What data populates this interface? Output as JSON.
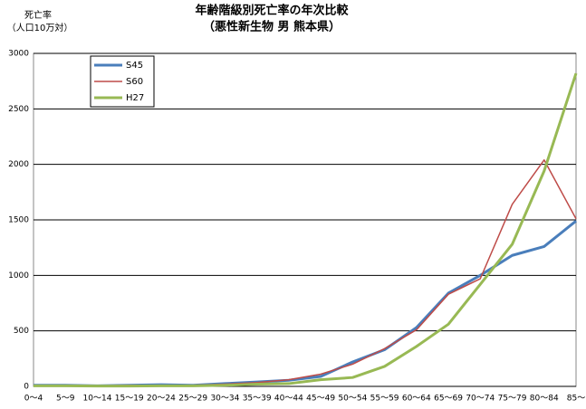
{
  "chart_data": {
    "type": "line",
    "title": "年齢階級別死亡率の年次比較",
    "subtitle": "（悪性新生物 男 熊本県）",
    "y_label": "死亡率",
    "y_label_sub": "（人口10万対）",
    "categories": [
      "0～4",
      "5～9",
      "10～14",
      "15～19",
      "20～24",
      "25～29",
      "30～34",
      "35～39",
      "40～44",
      "45～49",
      "50～54",
      "55～59",
      "60～64",
      "65～69",
      "70～74",
      "75～79",
      "80～84",
      "85～"
    ],
    "series": [
      {
        "name": "S45",
        "color": "#4a7ebb",
        "values": [
          10,
          10,
          5,
          10,
          15,
          10,
          25,
          40,
          55,
          90,
          220,
          330,
          530,
          840,
          1000,
          1180,
          1260,
          1490
        ]
      },
      {
        "name": "S60",
        "color": "#be4b48",
        "values": [
          10,
          10,
          5,
          10,
          10,
          10,
          20,
          35,
          60,
          110,
          200,
          340,
          510,
          830,
          970,
          1640,
          2040,
          1510
        ]
      },
      {
        "name": "H27",
        "color": "#98b954",
        "values": [
          5,
          5,
          3,
          3,
          5,
          5,
          10,
          20,
          25,
          60,
          80,
          180,
          360,
          560,
          920,
          1280,
          1940,
          2820
        ]
      }
    ],
    "ylim": [
      0,
      3000
    ],
    "yticks": [
      0,
      500,
      1000,
      1500,
      2000,
      2500,
      3000
    ],
    "grid": true
  }
}
